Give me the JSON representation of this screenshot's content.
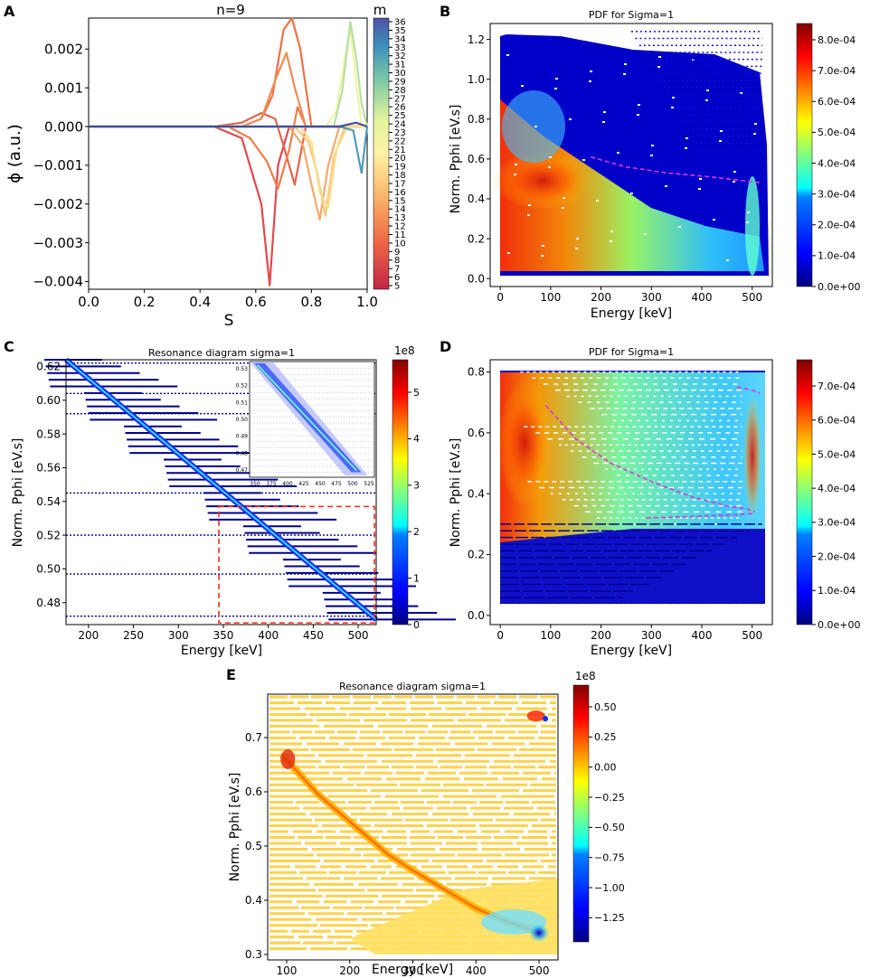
{
  "colors": {
    "jet": [
      "#00007f",
      "#0000ff",
      "#0080ff",
      "#00ffff",
      "#80ff80",
      "#ffff00",
      "#ff8000",
      "#ff0000",
      "#800000"
    ],
    "dash_line": "#d63ad0",
    "inset_box": "#ff2a1a",
    "background": "#ffffff",
    "text": "#000000"
  },
  "chart_data": [
    {
      "id": "A",
      "panel_label": "A",
      "type": "line",
      "title": "n=9",
      "xlabel": "S",
      "ylabel": "ϕ (a.u.)",
      "xlim": [
        0.0,
        1.0
      ],
      "ylim": [
        -0.0042,
        0.0028
      ],
      "xticks": [
        "0.0",
        "0.2",
        "0.4",
        "0.6",
        "0.8",
        "1.0"
      ],
      "yticks": [
        "0.002",
        "0.001",
        "0.000",
        "−0.001",
        "−0.002",
        "−0.003",
        "−0.004"
      ],
      "ytick_values": [
        0.002,
        0.001,
        0.0,
        -0.001,
        -0.002,
        -0.003,
        -0.004
      ],
      "colorbar_title": "m",
      "colorbar_ticks": [
        "36",
        "35",
        "34",
        "33",
        "32",
        "31",
        "30",
        "29",
        "28",
        "27",
        "26",
        "25",
        "24",
        "23",
        "22",
        "21",
        "20",
        "19",
        "18",
        "17",
        "16",
        "15",
        "14",
        "13",
        "12",
        "11",
        "10",
        "9",
        "8",
        "7",
        "6",
        "5"
      ],
      "series": [
        {
          "name": "m=5",
          "color": "#e1494c",
          "x": [
            0,
            0.45,
            0.55,
            0.62,
            0.65,
            0.68,
            0.72,
            0.78,
            1.0
          ],
          "y": [
            0,
            0,
            -0.0003,
            -0.002,
            -0.0041,
            -0.001,
            0,
            0,
            0
          ]
        },
        {
          "name": "m=6",
          "color": "#e8624a",
          "x": [
            0,
            0.45,
            0.55,
            0.62,
            0.67,
            0.7,
            0.74,
            0.78,
            1.0
          ],
          "y": [
            0,
            0,
            0.0001,
            0.00035,
            0.0002,
            -0.0005,
            -0.0015,
            0,
            0
          ]
        },
        {
          "name": "m=7",
          "color": "#ee7044",
          "x": [
            0,
            0.55,
            0.62,
            0.66,
            0.7,
            0.73,
            0.76,
            0.8,
            1.0
          ],
          "y": [
            0,
            0,
            0.0002,
            0.0008,
            0.0025,
            0.0028,
            0.002,
            0,
            0
          ]
        },
        {
          "name": "m=8",
          "color": "#f07d48",
          "x": [
            0,
            0.5,
            0.58,
            0.64,
            0.68,
            0.72,
            0.75,
            0.78,
            1.0
          ],
          "y": [
            0,
            0,
            -0.0003,
            -0.0009,
            -0.0016,
            -0.0006,
            0.0005,
            0,
            0
          ]
        },
        {
          "name": "m=9",
          "color": "#f28b55",
          "x": [
            0,
            0.55,
            0.62,
            0.67,
            0.71,
            0.74,
            0.78,
            1.0
          ],
          "y": [
            0,
            0,
            0.0002,
            0.0012,
            0.0019,
            0.001,
            0,
            0
          ]
        },
        {
          "name": "m=11",
          "color": "#f6a86b",
          "x": [
            0,
            0.72,
            0.77,
            0.8,
            0.83,
            0.86,
            0.9,
            1.0
          ],
          "y": [
            0,
            0,
            -0.0005,
            -0.0015,
            -0.0024,
            -0.001,
            0,
            0
          ]
        },
        {
          "name": "m=13",
          "color": "#f9c77f",
          "x": [
            0,
            0.74,
            0.79,
            0.82,
            0.85,
            0.88,
            0.92,
            1.0
          ],
          "y": [
            0,
            0,
            -0.0004,
            -0.0012,
            -0.0023,
            -0.0008,
            0,
            0
          ]
        },
        {
          "name": "m=15",
          "color": "#fbe08c",
          "x": [
            0,
            0.76,
            0.8,
            0.83,
            0.86,
            0.89,
            0.93,
            1.0
          ],
          "y": [
            0,
            0,
            -0.0004,
            -0.0017,
            -0.0021,
            -0.0006,
            0,
            0
          ]
        },
        {
          "name": "m=20",
          "color": "#f1f3a6",
          "x": [
            0,
            0.85,
            0.89,
            0.92,
            0.94,
            0.96,
            0.98,
            1.0
          ],
          "y": [
            0,
            0,
            0.0004,
            0.0018,
            0.0025,
            0.0012,
            0,
            0
          ]
        },
        {
          "name": "m=26",
          "color": "#b7e0a6",
          "x": [
            0,
            0.88,
            0.91,
            0.94,
            0.96,
            0.98,
            1.0
          ],
          "y": [
            0,
            0,
            0.0009,
            0.0027,
            0.0018,
            0.0006,
            0
          ]
        },
        {
          "name": "m=32",
          "color": "#4f9bb8",
          "x": [
            0,
            0.9,
            0.95,
            0.98,
            1.0
          ],
          "y": [
            0,
            0,
            -0.0001,
            -0.0012,
            0
          ]
        },
        {
          "name": "m=36",
          "color": "#3f4fa0",
          "x": [
            0,
            0.9,
            0.96,
            1.0
          ],
          "y": [
            0,
            0,
            0.0001,
            0
          ]
        }
      ]
    },
    {
      "id": "B",
      "panel_label": "B",
      "type": "heatmap",
      "title": "PDF for Sigma=1",
      "xlabel": "Energy [keV]",
      "ylabel": "Norm. Pphi [eV.s]",
      "xlim": [
        -20,
        540
      ],
      "ylim": [
        -0.04,
        1.28
      ],
      "xticks": [
        0,
        100,
        200,
        300,
        400,
        500
      ],
      "yticks": [
        0.0,
        0.2,
        0.4,
        0.6,
        0.8,
        1.0,
        1.2
      ],
      "ytick_labels": [
        "0.0",
        "0.2",
        "0.4",
        "0.6",
        "0.8",
        "1.0",
        "1.2"
      ],
      "colorbar_ticks": [
        "8.0e-04",
        "7.0e-04",
        "6.0e-04",
        "5.0e-04",
        "4.0e-04",
        "3.0e-04",
        "2.0e-04",
        "1.0e-04",
        "0.0e+00"
      ],
      "colorbar_range": [
        0.0,
        0.00086
      ],
      "dashed_curve": {
        "x": [
          180,
          250,
          330,
          420,
          520
        ],
        "y": [
          0.61,
          0.56,
          0.53,
          0.51,
          0.48
        ]
      }
    },
    {
      "id": "C",
      "panel_label": "C",
      "type": "heatmap",
      "title": "Resonance diagram sigma=1",
      "xlabel": "Energy [keV]",
      "ylabel": "Norm. Pphi [eV.s]",
      "xlim": [
        175,
        520
      ],
      "ylim": [
        0.467,
        0.624
      ],
      "xticks": [
        200,
        250,
        300,
        350,
        400,
        450,
        500
      ],
      "yticks": [
        0.48,
        0.5,
        0.52,
        0.54,
        0.56,
        0.58,
        0.6,
        0.62
      ],
      "ytick_labels": [
        "0.48",
        "0.50",
        "0.52",
        "0.54",
        "0.56",
        "0.58",
        "0.60",
        "0.62"
      ],
      "colorbar_unit": "1e8",
      "colorbar_ticks": [
        "5",
        "4",
        "3",
        "2",
        "1",
        "0"
      ],
      "colorbar_range": [
        0,
        5.7
      ],
      "diagonal": {
        "x": [
          175,
          520
        ],
        "y": [
          0.624,
          0.47
        ]
      },
      "zoom_box": {
        "x": [
          345,
          518
        ],
        "y": [
          0.468,
          0.537
        ]
      },
      "inset": {
        "xticks": [
          "350",
          "375",
          "400",
          "425",
          "450",
          "475",
          "500",
          "525"
        ],
        "yticks": [
          "0.53",
          "0.52",
          "0.51",
          "0.50",
          "0.49",
          "0.48",
          "0.47"
        ],
        "xlim": [
          345,
          535
        ],
        "ylim": [
          0.467,
          0.537
        ]
      }
    },
    {
      "id": "D",
      "panel_label": "D",
      "type": "heatmap",
      "title": "PDF for Sigma=1",
      "xlabel": "Energy [keV]",
      "ylabel": "Norm. Pphi [eV.s]",
      "xlim": [
        -20,
        540
      ],
      "ylim": [
        -0.03,
        0.84
      ],
      "xticks": [
        0,
        100,
        200,
        300,
        400,
        500
      ],
      "yticks": [
        0.0,
        0.2,
        0.4,
        0.6,
        0.8
      ],
      "ytick_labels": [
        "0.0",
        "0.2",
        "0.4",
        "0.6",
        "0.8"
      ],
      "colorbar_ticks": [
        "7.0e-04",
        "6.0e-04",
        "5.0e-04",
        "4.0e-04",
        "3.0e-04",
        "2.0e-04",
        "1.0e-04",
        "0.0e+00"
      ],
      "colorbar_range": [
        0.0,
        0.00077
      ],
      "dashed_curves": [
        {
          "x": [
            90,
            150,
            220,
            300,
            380,
            450,
            490,
            505
          ],
          "y": [
            0.69,
            0.58,
            0.5,
            0.44,
            0.39,
            0.36,
            0.35,
            0.34
          ]
        },
        {
          "x": [
            290,
            380,
            460,
            505
          ],
          "y": [
            0.32,
            0.325,
            0.33,
            0.335
          ]
        },
        {
          "x": [
            470,
            500,
            515
          ],
          "y": [
            0.75,
            0.74,
            0.73
          ]
        }
      ]
    },
    {
      "id": "E",
      "panel_label": "E",
      "type": "heatmap",
      "title": "Resonance diagram sigma=1",
      "xlabel": "Energy [keV]",
      "ylabel": "Norm. Pphi [eV.s]",
      "xlim": [
        70,
        530
      ],
      "ylim": [
        0.29,
        0.78
      ],
      "xticks": [
        100,
        200,
        300,
        400,
        500
      ],
      "yticks": [
        0.3,
        0.4,
        0.5,
        0.6,
        0.7
      ],
      "ytick_labels": [
        "0.3",
        "0.4",
        "0.5",
        "0.6",
        "0.7"
      ],
      "colorbar_unit": "1e8",
      "colorbar_ticks": [
        "0.50",
        "0.25",
        "0.00",
        "−0.25",
        "−0.50",
        "−0.75",
        "−1.00",
        "−1.25"
      ],
      "colorbar_tick_values": [
        0.5,
        0.25,
        0.0,
        -0.25,
        -0.5,
        -0.75,
        -1.0,
        -1.25
      ],
      "colorbar_range": [
        -1.45,
        0.68
      ],
      "curve": {
        "x": [
          95,
          150,
          200,
          260,
          300,
          350,
          400,
          450,
          490,
          500
        ],
        "y": [
          0.665,
          0.595,
          0.545,
          0.485,
          0.455,
          0.42,
          0.385,
          0.36,
          0.345,
          0.34
        ]
      }
    }
  ]
}
